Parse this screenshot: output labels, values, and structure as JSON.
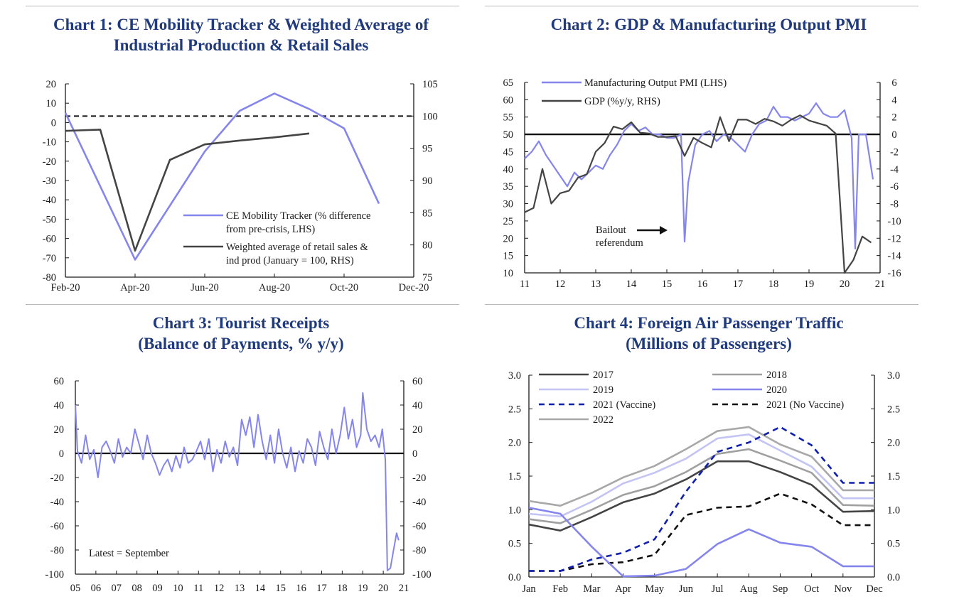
{
  "colors": {
    "title": "#1f3a7d",
    "mobility": "#8585ee",
    "dark": "#444444",
    "axis": "#1a1a1a"
  },
  "chart_data": [
    {
      "id": "c1",
      "type": "line",
      "title_lines": [
        "Chart 1: CE Mobility Tracker & Weighted Average of",
        "Industrial Production & Retail Sales"
      ],
      "x_ticks": [
        "Feb-20",
        "Apr-20",
        "Jun-20",
        "Aug-20",
        "Oct-20",
        "Dec-20"
      ],
      "x_range": [
        0,
        10
      ],
      "y_left_ticks": [
        "20",
        "10",
        "0",
        "-10",
        "-20",
        "-30",
        "-40",
        "-50",
        "-60",
        "-70",
        "-80"
      ],
      "y_left_range": [
        -80,
        20
      ],
      "y_right_ticks": [
        "105",
        "100",
        "95",
        "90",
        "85",
        "80",
        "75"
      ],
      "y_right_range": [
        75,
        105
      ],
      "reference_line": {
        "axis": "right",
        "value": 100,
        "style": "dashed"
      },
      "series": [
        {
          "name": "CE Mobility Tracker (% difference from pre-crisis, LHS)",
          "legend_lines": [
            "CE Mobility Tracker (% difference",
            "from pre-crisis, LHS)"
          ],
          "axis": "left",
          "color": "#8585ee",
          "x": [
            0,
            2,
            4,
            5,
            6,
            7,
            8,
            9
          ],
          "values": [
            5,
            -71,
            -15,
            6,
            15,
            7,
            -3,
            -42
          ]
        },
        {
          "name": "Weighted average of retail sales & ind prod (January = 100, RHS)",
          "legend_lines": [
            "Weighted average of retail sales &",
            "ind prod (January = 100, RHS)"
          ],
          "axis": "right",
          "color": "#444444",
          "x": [
            0,
            1,
            2,
            3,
            4,
            5,
            6,
            7
          ],
          "values": [
            97.7,
            97.9,
            79.1,
            93.2,
            95.6,
            96.2,
            96.7,
            97.3
          ]
        }
      ]
    },
    {
      "id": "c2",
      "type": "line",
      "title_lines": [
        "Chart 2: GDP & Manufacturing Output PMI"
      ],
      "x_ticks": [
        "11",
        "12",
        "13",
        "14",
        "15",
        "16",
        "17",
        "18",
        "19",
        "20",
        "21"
      ],
      "x_range": [
        2011,
        2021
      ],
      "y_left_ticks": [
        "65",
        "60",
        "55",
        "50",
        "45",
        "40",
        "35",
        "30",
        "25",
        "20",
        "15",
        "10"
      ],
      "y_left_range": [
        10,
        65
      ],
      "y_right_ticks": [
        "6",
        "4",
        "2",
        "0",
        "-2",
        "-4",
        "-6",
        "-8",
        "-10",
        "-12",
        "-14",
        "-16"
      ],
      "y_right_range": [
        -16,
        6
      ],
      "reference_line": {
        "axis": "left",
        "value": 50,
        "style": "solid"
      },
      "annotation": {
        "lines": [
          "Bailout",
          "referendum"
        ]
      },
      "series": [
        {
          "name": "Manufacturing Output PMI (LHS)",
          "axis": "left",
          "color": "#8585ee",
          "x": [
            2011.0,
            2011.2,
            2011.4,
            2011.6,
            2011.8,
            2012.0,
            2012.2,
            2012.4,
            2012.6,
            2012.8,
            2013.0,
            2013.2,
            2013.4,
            2013.6,
            2013.8,
            2014.0,
            2014.2,
            2014.4,
            2014.6,
            2014.8,
            2015.0,
            2015.2,
            2015.4,
            2015.5,
            2015.6,
            2015.8,
            2016.0,
            2016.2,
            2016.4,
            2016.6,
            2016.8,
            2017.0,
            2017.2,
            2017.4,
            2017.6,
            2017.8,
            2018.0,
            2018.2,
            2018.4,
            2018.6,
            2018.8,
            2019.0,
            2019.2,
            2019.4,
            2019.6,
            2019.8,
            2020.0,
            2020.2,
            2020.3,
            2020.4,
            2020.6,
            2020.8
          ],
          "values": [
            43,
            45,
            48,
            44,
            41,
            38,
            35,
            39,
            37,
            39,
            41,
            40,
            44,
            47,
            51,
            53,
            51,
            52,
            50,
            50,
            49,
            49,
            50,
            19,
            36,
            47,
            50,
            51,
            48,
            50,
            49,
            47,
            45,
            50,
            53,
            54,
            58,
            55,
            55,
            54,
            55,
            56,
            59,
            56,
            55,
            55,
            57,
            49,
            17,
            50,
            50,
            37
          ]
        },
        {
          "name": "GDP (%y/y, RHS)",
          "axis": "right",
          "color": "#444444",
          "x": [
            2011.0,
            2011.25,
            2011.5,
            2011.75,
            2012.0,
            2012.25,
            2012.5,
            2012.75,
            2013.0,
            2013.25,
            2013.5,
            2013.75,
            2014.0,
            2014.25,
            2014.5,
            2014.75,
            2015.0,
            2015.25,
            2015.5,
            2015.75,
            2016.0,
            2016.25,
            2016.5,
            2016.75,
            2017.0,
            2017.25,
            2017.5,
            2017.75,
            2018.0,
            2018.25,
            2018.5,
            2018.75,
            2019.0,
            2019.25,
            2019.5,
            2019.75,
            2020.0,
            2020.25,
            2020.5,
            2020.75
          ],
          "values": [
            -9.0,
            -8.5,
            -4.0,
            -8.0,
            -6.8,
            -6.5,
            -5.0,
            -4.6,
            -2.0,
            -1.0,
            0.9,
            0.6,
            1.4,
            0.2,
            0.1,
            -0.3,
            -0.3,
            -0.2,
            -2.5,
            -0.4,
            -1.0,
            -1.5,
            2.0,
            -0.8,
            1.7,
            1.7,
            1.2,
            1.8,
            1.5,
            1.0,
            1.7,
            2.2,
            1.6,
            1.3,
            1.0,
            0.1,
            -16.0,
            -14.5,
            -11.8,
            -12.5
          ]
        }
      ]
    },
    {
      "id": "c3",
      "type": "line",
      "title_lines": [
        "Chart 3: Tourist Receipts",
        "(Balance of Payments, % y/y)"
      ],
      "x_ticks": [
        "05",
        "06",
        "07",
        "08",
        "09",
        "10",
        "11",
        "12",
        "13",
        "14",
        "15",
        "16",
        "17",
        "18",
        "19",
        "20",
        "21"
      ],
      "x_range": [
        2005,
        2021
      ],
      "y_left_ticks": [
        "60",
        "40",
        "20",
        "0",
        "-20",
        "-40",
        "-60",
        "-80",
        "-100"
      ],
      "y_left_range": [
        -100,
        60
      ],
      "y_right_ticks": [
        "60",
        "40",
        "20",
        "0",
        "-20",
        "-40",
        "-60",
        "-80",
        "-100"
      ],
      "y_right_range": [
        -100,
        60
      ],
      "reference_line": {
        "axis": "left",
        "value": 0,
        "style": "solid"
      },
      "annotation": {
        "lines": [
          "Latest = September"
        ]
      },
      "series": [
        {
          "name": "Tourist receipts",
          "axis": "left",
          "color": "#8585ee",
          "x": [
            2005.0,
            2005.1,
            2005.3,
            2005.5,
            2005.7,
            2005.9,
            2006.1,
            2006.3,
            2006.5,
            2006.7,
            2006.9,
            2007.1,
            2007.3,
            2007.5,
            2007.7,
            2007.9,
            2008.1,
            2008.3,
            2008.5,
            2008.7,
            2008.9,
            2009.1,
            2009.3,
            2009.5,
            2009.7,
            2009.9,
            2010.1,
            2010.3,
            2010.5,
            2010.7,
            2010.9,
            2011.1,
            2011.3,
            2011.5,
            2011.7,
            2011.9,
            2012.1,
            2012.3,
            2012.5,
            2012.7,
            2012.9,
            2013.1,
            2013.3,
            2013.5,
            2013.7,
            2013.9,
            2014.1,
            2014.3,
            2014.5,
            2014.7,
            2014.9,
            2015.1,
            2015.3,
            2015.5,
            2015.7,
            2015.9,
            2016.1,
            2016.3,
            2016.5,
            2016.7,
            2016.9,
            2017.1,
            2017.3,
            2017.5,
            2017.7,
            2017.9,
            2018.1,
            2018.3,
            2018.5,
            2018.7,
            2018.9,
            2019.0,
            2019.2,
            2019.4,
            2019.6,
            2019.8,
            2019.95,
            2020.1,
            2020.2,
            2020.35,
            2020.5,
            2020.65,
            2020.75
          ],
          "values": [
            40,
            2,
            -8,
            15,
            -5,
            3,
            -20,
            5,
            10,
            2,
            -8,
            12,
            -3,
            5,
            0,
            20,
            8,
            -5,
            15,
            0,
            -8,
            -18,
            -10,
            -5,
            -15,
            -2,
            -12,
            5,
            -8,
            -5,
            2,
            10,
            -5,
            12,
            -15,
            3,
            -8,
            10,
            -3,
            5,
            -10,
            28,
            15,
            30,
            5,
            32,
            10,
            -5,
            15,
            -8,
            20,
            0,
            -12,
            5,
            -15,
            2,
            -8,
            12,
            5,
            -10,
            18,
            5,
            -5,
            20,
            0,
            15,
            38,
            12,
            28,
            5,
            15,
            50,
            20,
            10,
            15,
            5,
            20,
            -5,
            -97,
            -95,
            -80,
            -66,
            -72
          ]
        }
      ]
    },
    {
      "id": "c4",
      "type": "line",
      "title_lines": [
        "Chart 4: Foreign Air Passenger Traffic",
        "(Millions of Passengers)"
      ],
      "x_ticks": [
        "Jan",
        "Feb",
        "Mar",
        "Apr",
        "May",
        "Jun",
        "Jul",
        "Aug",
        "Sep",
        "Oct",
        "Nov",
        "Dec"
      ],
      "y_left_ticks": [
        "3.0",
        "2.5",
        "2.0",
        "1.5",
        "1.0",
        "0.5",
        "0.0"
      ],
      "y_left_range": [
        0,
        3
      ],
      "y_right_ticks": [
        "3.0",
        "2.5",
        "2.0",
        "1.5",
        "1.0",
        "0.5",
        "0.0"
      ],
      "y_right_range": [
        0,
        3
      ],
      "series": [
        {
          "name": "2017",
          "color": "#444444",
          "dash": "solid",
          "values": [
            0.78,
            0.69,
            0.89,
            1.11,
            1.24,
            1.45,
            1.72,
            1.72,
            1.56,
            1.37,
            0.97,
            0.98
          ]
        },
        {
          "name": "2018",
          "color": "#a0a0a0",
          "dash": "solid",
          "values": [
            0.86,
            0.8,
            1.0,
            1.22,
            1.35,
            1.56,
            1.83,
            1.9,
            1.73,
            1.55,
            1.07,
            1.06
          ]
        },
        {
          "name": "2019",
          "color": "#c4c4f4",
          "dash": "solid",
          "values": [
            0.94,
            0.9,
            1.12,
            1.39,
            1.55,
            1.76,
            2.06,
            2.12,
            1.88,
            1.64,
            1.17,
            1.17
          ]
        },
        {
          "name": "2020",
          "color": "#8585ee",
          "dash": "solid",
          "values": [
            1.03,
            0.94,
            0.45,
            0.01,
            0.02,
            0.12,
            0.49,
            0.71,
            0.51,
            0.45,
            0.16,
            0.16
          ]
        },
        {
          "name": "2021 (Vaccine)",
          "color": "#0f1fb0",
          "dash": "dashed",
          "values": [
            0.09,
            0.09,
            0.26,
            0.36,
            0.56,
            1.27,
            1.86,
            2.0,
            2.23,
            1.96,
            1.4,
            1.4
          ]
        },
        {
          "name": "2021 (No Vaccine)",
          "color": "#111111",
          "dash": "dashed",
          "values": [
            0.09,
            0.09,
            0.19,
            0.22,
            0.33,
            0.92,
            1.03,
            1.05,
            1.24,
            1.08,
            0.77,
            0.77
          ]
        },
        {
          "name": "2022",
          "color": "#a8a8a8",
          "dash": "solid",
          "values": [
            1.13,
            1.06,
            1.25,
            1.48,
            1.65,
            1.9,
            2.17,
            2.23,
            1.97,
            1.79,
            1.29,
            1.29
          ]
        }
      ]
    }
  ]
}
